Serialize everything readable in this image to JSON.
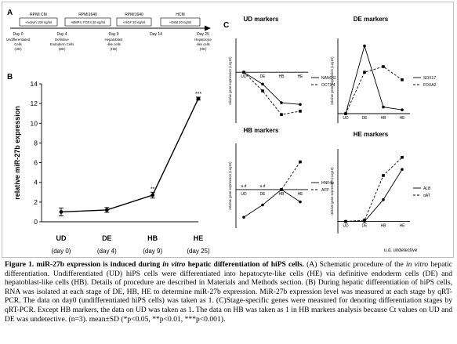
{
  "figure": {
    "panel_a": {
      "label": "A",
      "stages": [
        {
          "day": "Day 0",
          "desc": [
            "Undifferentiated",
            "Cells",
            "(UD)"
          ]
        },
        {
          "day": "Day 4",
          "desc": [
            "Definitive",
            "Endoderm Cells",
            "(DE)"
          ]
        },
        {
          "day": "Day 9",
          "desc": [
            "Hepatoblast",
            "-like cells",
            "(HB)"
          ]
        },
        {
          "day": "Day 14",
          "desc": []
        },
        {
          "day": "Day 25",
          "desc": [
            "Hepatocyte",
            "-like cells",
            "(HE)"
          ]
        }
      ],
      "media": [
        {
          "name": "RPMI CM",
          "factors": "+Activin 100 ng/ml"
        },
        {
          "name": "RPMI1640",
          "factors": "+BMP4, FGF4 20 ng/ml"
        },
        {
          "name": "RPMI1640",
          "factors": "+HGF 20 ng/ml"
        },
        {
          "name": "HCM",
          "factors": "+OsM 20 ng/ml"
        }
      ]
    },
    "panel_b": {
      "label": "B",
      "chart_data": {
        "type": "line",
        "categories": [
          "UD",
          "DE",
          "HB",
          "HE"
        ],
        "category_sublabels": [
          "(day 0)",
          "(day 4)",
          "(day 9)",
          "(day 25)"
        ],
        "values": [
          1.0,
          1.2,
          2.7,
          12.5
        ],
        "errors": [
          0.4,
          0.25,
          0.3,
          0.15
        ],
        "significance": [
          "",
          "",
          "**",
          "***"
        ],
        "ylabel": "relative miR-27b expression",
        "ylim": [
          0,
          14
        ],
        "yticks": [
          0,
          2,
          4,
          6,
          8,
          10,
          12,
          14
        ]
      }
    },
    "panel_c": {
      "label": "C",
      "footnote": "u.d, undetective",
      "charts": [
        {
          "title": "UD markers",
          "type": "line",
          "ylabel": "relative gene expression (Log10)",
          "categories": [
            "UD",
            "DE",
            "HB",
            "HE"
          ],
          "ylim": [
            -3,
            2
          ],
          "series": [
            {
              "name": "NANOG",
              "values": [
                0,
                -0.7,
                -1.8,
                -1.9
              ],
              "dashed": false
            },
            {
              "name": "OCT3/4",
              "values": [
                0,
                -1.1,
                -2.5,
                -2.3
              ],
              "dashed": true
            }
          ]
        },
        {
          "title": "DE markers",
          "type": "line",
          "ylabel": "relative gene expression (Log10)",
          "categories": [
            "UD",
            "DE",
            "HB",
            "HE"
          ],
          "ylim": [
            -0.5,
            4
          ],
          "series": [
            {
              "name": "SOX17",
              "values": [
                0,
                3.6,
                0.35,
                0.2
              ],
              "dashed": false
            },
            {
              "name": "FOXA2",
              "values": [
                0,
                2.2,
                2.5,
                1.8
              ],
              "dashed": true
            }
          ]
        },
        {
          "title": "HB markers",
          "type": "line",
          "ylabel": "relative gene expression (Log10)",
          "categories": [
            "UD",
            "DE",
            "HB",
            "HE"
          ],
          "ylim": [
            -2.5,
            3
          ],
          "point_annotations": [
            "u.d",
            "u.d",
            "",
            ""
          ],
          "series": [
            {
              "name": "HNF4α",
              "values": [
                -1.8,
                -1.0,
                0,
                -0.8
              ],
              "dashed": false
            },
            {
              "name": "AFP",
              "values": [
                null,
                null,
                0,
                1.8
              ],
              "dashed": true
            }
          ]
        },
        {
          "title": "HE markers",
          "type": "line",
          "ylabel": "relative gene expression (Log10)",
          "categories": [
            "UD",
            "DE",
            "HB",
            "HE"
          ],
          "ylim": [
            -1,
            6
          ],
          "series": [
            {
              "name": "ALB",
              "values": [
                0,
                0,
                1.8,
                4.3
              ],
              "dashed": false
            },
            {
              "name": "αAT",
              "values": [
                0,
                0.1,
                3.8,
                5.3
              ],
              "dashed": true
            }
          ]
        }
      ]
    }
  },
  "caption": {
    "label": "Figure 1.",
    "title_part1": "miR-27b expression is induced during",
    "title_italic": "in vitro",
    "title_part2": "hepatic differentiation of hiPS cells.",
    "body_1": "(A) Schematic procedure of the",
    "body_italic": "in vitro",
    "body_2": "hepatic differentiation. Undifferentiated (UD) hiPS cells were differentiated into hepatocyte-like cells (HE) via definitive endoderm cells (DE) and hepatoblast-like cells (HB). Details of procedure are described in Materials and Methods section. (B) During hepatic differentiation of hiPS cells, RNA was isolated at each stage of DE, HB, HE to determine miR-27b expression. MiR-27b expression level was measured at each stage by qRT-PCR. The data on day0 (undifferentiated hiPS cells) was taken as 1. (C)Stage-specific genes were measured for denoting differentiation stages by qRT-PCR. Except HB markers, the data on UD was taken as 1. The data on HB was taken as 1 in HB markers analysis because Ct values on UD and DE was undetective. (n=3). mean±SD (*p<0.05, **p<0.01, ***p<0.001)."
  }
}
